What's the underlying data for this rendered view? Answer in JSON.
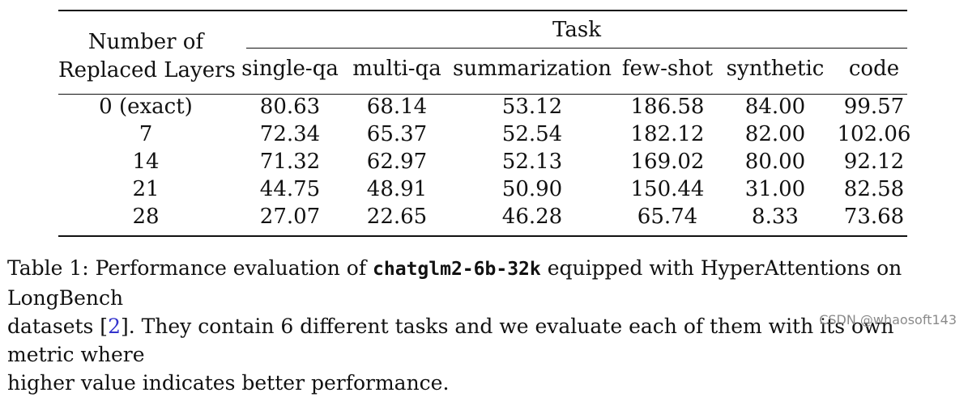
{
  "table": {
    "stub_header_line1": "Number of",
    "stub_header_line2": "Replaced Layers",
    "group_header": "Task",
    "columns": [
      "single-qa",
      "multi-qa",
      "summarization",
      "few-shot",
      "synthetic",
      "code"
    ],
    "rows": [
      {
        "label": "0 (exact)",
        "values": [
          "80.63",
          "68.14",
          "53.12",
          "186.58",
          "84.00",
          "99.57"
        ]
      },
      {
        "label": "7",
        "values": [
          "72.34",
          "65.37",
          "52.54",
          "182.12",
          "82.00",
          "102.06"
        ]
      },
      {
        "label": "14",
        "values": [
          "71.32",
          "62.97",
          "52.13",
          "169.02",
          "80.00",
          "92.12"
        ]
      },
      {
        "label": "21",
        "values": [
          "44.75",
          "48.91",
          "50.90",
          "150.44",
          "31.00",
          "82.58"
        ]
      },
      {
        "label": "28",
        "values": [
          "27.07",
          "22.65",
          "46.28",
          "65.74",
          "8.33",
          "73.68"
        ]
      }
    ]
  },
  "caption": {
    "line1_prefix": "Table 1: Performance evaluation of ",
    "model_name": "chatglm2-6b-32k",
    "line1_suffix": " equipped with HyperAttentions on LongBench",
    "line2_prefix": "datasets [",
    "citation": "2",
    "line2_suffix": "]. They contain 6 different tasks and we evaluate each of them with its own metric where",
    "line3": "higher value indicates better performance."
  },
  "watermark": "CSDN @whaosoft143"
}
